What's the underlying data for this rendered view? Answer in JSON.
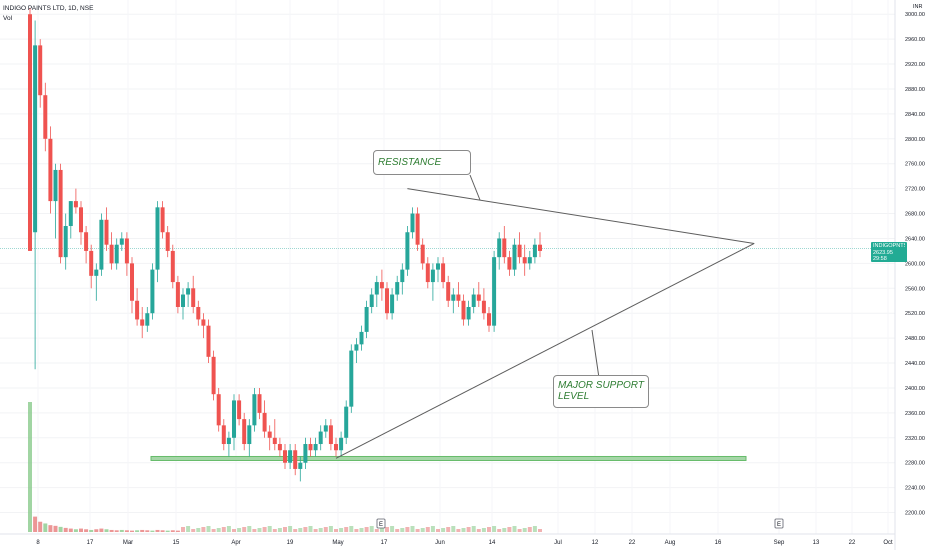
{
  "header": {
    "symbol_line": "INDIGO PAINTS LTD, 1D, NSE",
    "volume_label": "Vol"
  },
  "currency": "INR",
  "price_tag": {
    "symbol": "INDIGOPNTS",
    "price": "2623.95",
    "countdown": "29:58"
  },
  "annotations": {
    "resistance": "RESISTANCE",
    "support": "MAJOR SUPPORT LEVEL"
  },
  "earnings_marker": "E",
  "colors": {
    "up": "#26a69a",
    "down": "#ef5350",
    "volume_up": "#81c784",
    "volume_down": "#e57373",
    "trendline": "#5d5d5d",
    "support_zone": "#a5d6a7",
    "current_price_line": "#80cbc4"
  },
  "chart_data": {
    "type": "candlestick",
    "timeframe": "1D",
    "exchange": "NSE",
    "ylim": [
      2180,
      3010
    ],
    "y_ticks": [
      2200,
      2240,
      2280,
      2320,
      2360,
      2400,
      2440,
      2480,
      2520,
      2560,
      2600,
      2640,
      2680,
      2720,
      2760,
      2800,
      2840,
      2880,
      2920,
      2960,
      3000
    ],
    "x_tick_labels": [
      "8",
      "17",
      "Mar",
      "15",
      "Apr",
      "19",
      "May",
      "17",
      "Jun",
      "14",
      "Jul",
      "12",
      "22",
      "Aug",
      "16",
      "Sep",
      "13",
      "22",
      "Oct"
    ],
    "current_price": 2623.95,
    "support_zone": [
      2285,
      2290
    ],
    "trend_lines": [
      {
        "name": "resistance",
        "from": {
          "bar": 74,
          "price": 2720
        },
        "to": {
          "bar": 142,
          "price": 2632
        }
      },
      {
        "name": "support",
        "from": {
          "bar": 60,
          "price": 2287
        },
        "to": {
          "bar": 142,
          "price": 2632
        }
      }
    ],
    "candles": [
      [
        3000,
        3010,
        2620,
        2620
      ],
      [
        2650,
        2990,
        2430,
        2950
      ],
      [
        2950,
        2960,
        2850,
        2870
      ],
      [
        2870,
        2890,
        2780,
        2800
      ],
      [
        2800,
        2820,
        2680,
        2700
      ],
      [
        2700,
        2760,
        2640,
        2750
      ],
      [
        2750,
        2760,
        2600,
        2610
      ],
      [
        2610,
        2680,
        2590,
        2660
      ],
      [
        2660,
        2700,
        2640,
        2700
      ],
      [
        2700,
        2720,
        2680,
        2690
      ],
      [
        2690,
        2700,
        2630,
        2650
      ],
      [
        2650,
        2660,
        2600,
        2620
      ],
      [
        2620,
        2630,
        2560,
        2580
      ],
      [
        2580,
        2600,
        2540,
        2590
      ],
      [
        2590,
        2680,
        2580,
        2670
      ],
      [
        2670,
        2690,
        2620,
        2630
      ],
      [
        2630,
        2650,
        2590,
        2600
      ],
      [
        2600,
        2640,
        2590,
        2630
      ],
      [
        2630,
        2650,
        2620,
        2640
      ],
      [
        2640,
        2650,
        2580,
        2600
      ],
      [
        2600,
        2610,
        2520,
        2540
      ],
      [
        2540,
        2560,
        2500,
        2510
      ],
      [
        2510,
        2530,
        2480,
        2500
      ],
      [
        2500,
        2530,
        2490,
        2520
      ],
      [
        2520,
        2600,
        2510,
        2590
      ],
      [
        2590,
        2700,
        2570,
        2690
      ],
      [
        2690,
        2700,
        2640,
        2650
      ],
      [
        2650,
        2660,
        2610,
        2620
      ],
      [
        2620,
        2630,
        2560,
        2570
      ],
      [
        2570,
        2580,
        2520,
        2530
      ],
      [
        2530,
        2560,
        2510,
        2550
      ],
      [
        2550,
        2570,
        2530,
        2560
      ],
      [
        2560,
        2580,
        2520,
        2530
      ],
      [
        2530,
        2540,
        2500,
        2510
      ],
      [
        2510,
        2520,
        2480,
        2500
      ],
      [
        2500,
        2510,
        2440,
        2450
      ],
      [
        2450,
        2460,
        2380,
        2390
      ],
      [
        2390,
        2400,
        2330,
        2340
      ],
      [
        2340,
        2350,
        2300,
        2310
      ],
      [
        2310,
        2330,
        2290,
        2320
      ],
      [
        2320,
        2390,
        2300,
        2380
      ],
      [
        2380,
        2390,
        2340,
        2350
      ],
      [
        2350,
        2360,
        2300,
        2310
      ],
      [
        2310,
        2350,
        2290,
        2340
      ],
      [
        2340,
        2400,
        2330,
        2390
      ],
      [
        2390,
        2400,
        2350,
        2360
      ],
      [
        2360,
        2380,
        2320,
        2330
      ],
      [
        2330,
        2340,
        2300,
        2320
      ],
      [
        2320,
        2350,
        2300,
        2310
      ],
      [
        2310,
        2320,
        2290,
        2300
      ],
      [
        2300,
        2310,
        2270,
        2280
      ],
      [
        2280,
        2310,
        2270,
        2300
      ],
      [
        2300,
        2310,
        2260,
        2270
      ],
      [
        2270,
        2290,
        2250,
        2280
      ],
      [
        2280,
        2320,
        2270,
        2310
      ],
      [
        2310,
        2320,
        2290,
        2300
      ],
      [
        2300,
        2320,
        2290,
        2310
      ],
      [
        2310,
        2340,
        2300,
        2330
      ],
      [
        2330,
        2350,
        2320,
        2340
      ],
      [
        2340,
        2350,
        2300,
        2310
      ],
      [
        2310,
        2320,
        2290,
        2300
      ],
      [
        2300,
        2330,
        2290,
        2320
      ],
      [
        2320,
        2380,
        2310,
        2370
      ],
      [
        2370,
        2470,
        2360,
        2460
      ],
      [
        2460,
        2480,
        2440,
        2470
      ],
      [
        2470,
        2500,
        2460,
        2490
      ],
      [
        2490,
        2540,
        2480,
        2530
      ],
      [
        2530,
        2560,
        2520,
        2550
      ],
      [
        2550,
        2580,
        2530,
        2570
      ],
      [
        2570,
        2590,
        2540,
        2560
      ],
      [
        2560,
        2570,
        2510,
        2520
      ],
      [
        2520,
        2560,
        2510,
        2550
      ],
      [
        2550,
        2580,
        2540,
        2570
      ],
      [
        2570,
        2600,
        2550,
        2590
      ],
      [
        2590,
        2660,
        2580,
        2650
      ],
      [
        2650,
        2690,
        2640,
        2680
      ],
      [
        2680,
        2690,
        2620,
        2630
      ],
      [
        2630,
        2640,
        2590,
        2600
      ],
      [
        2600,
        2610,
        2560,
        2570
      ],
      [
        2570,
        2600,
        2540,
        2590
      ],
      [
        2590,
        2610,
        2570,
        2600
      ],
      [
        2600,
        2610,
        2560,
        2570
      ],
      [
        2570,
        2580,
        2530,
        2540
      ],
      [
        2540,
        2560,
        2520,
        2550
      ],
      [
        2550,
        2570,
        2530,
        2540
      ],
      [
        2540,
        2550,
        2500,
        2510
      ],
      [
        2510,
        2540,
        2500,
        2530
      ],
      [
        2530,
        2560,
        2520,
        2550
      ],
      [
        2550,
        2570,
        2530,
        2540
      ],
      [
        2540,
        2560,
        2510,
        2520
      ],
      [
        2520,
        2530,
        2490,
        2500
      ],
      [
        2500,
        2620,
        2490,
        2610
      ],
      [
        2610,
        2650,
        2590,
        2640
      ],
      [
        2640,
        2660,
        2600,
        2610
      ],
      [
        2610,
        2620,
        2580,
        2590
      ],
      [
        2590,
        2640,
        2580,
        2630
      ],
      [
        2630,
        2650,
        2600,
        2610
      ],
      [
        2610,
        2630,
        2580,
        2600
      ],
      [
        2600,
        2620,
        2590,
        2610
      ],
      [
        2610,
        2640,
        2600,
        2630
      ],
      [
        2630,
        2650,
        2610,
        2620
      ]
    ],
    "volume_bars": [
      380,
      45,
      30,
      25,
      20,
      18,
      15,
      12,
      10,
      8,
      10,
      8,
      6,
      8,
      10,
      8,
      6,
      5,
      6,
      5,
      4,
      5,
      6,
      5,
      4,
      6,
      5,
      4,
      5,
      4
    ]
  }
}
